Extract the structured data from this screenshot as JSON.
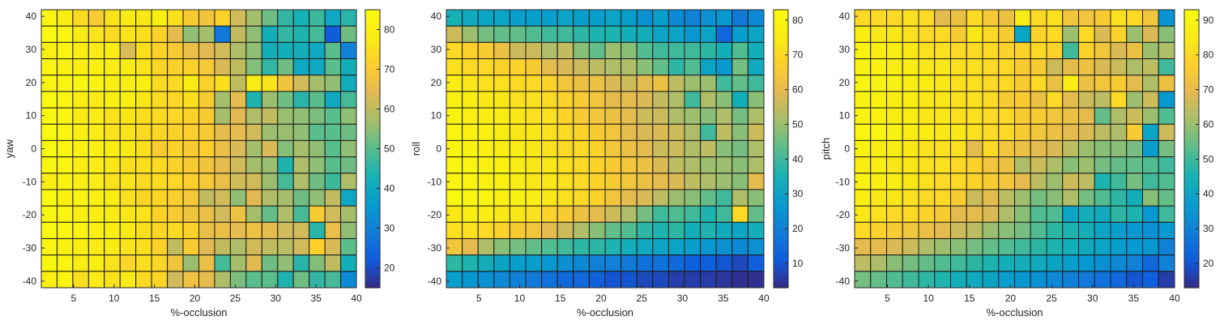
{
  "chart_data": [
    {
      "type": "heatmap",
      "title": "",
      "xlabel": "%-occlusion",
      "ylabel": "yaw",
      "x_ticks": [
        5,
        10,
        15,
        20,
        25,
        30,
        35,
        40
      ],
      "y_ticks": [
        40,
        30,
        20,
        10,
        0,
        -10,
        -20,
        -30,
        -40
      ],
      "colorbar_ticks": [
        80,
        70,
        60,
        50,
        40,
        30,
        20
      ],
      "colorbar_range": [
        15,
        85
      ],
      "colormap": "parula",
      "grid": true,
      "x_range": [
        1,
        40
      ],
      "y_range": [
        -42,
        42
      ],
      "x": [
        2,
        4,
        6,
        8,
        10,
        12,
        14,
        16,
        18,
        20,
        22,
        24,
        26,
        28,
        30,
        32,
        34,
        36,
        38,
        40
      ],
      "y": [
        40,
        35,
        30,
        25,
        20,
        15,
        10,
        5,
        0,
        -5,
        -10,
        -15,
        -20,
        -25,
        -30,
        -35,
        -40
      ],
      "values": [
        [
          82,
          79,
          74,
          70,
          76,
          78,
          77,
          80,
          75,
          70,
          68,
          72,
          62,
          57,
          52,
          46,
          43,
          47,
          40,
          45
        ],
        [
          84,
          82,
          78,
          76,
          74,
          76,
          75,
          72,
          65,
          55,
          57,
          28,
          60,
          55,
          42,
          46,
          44,
          48,
          22,
          52
        ],
        [
          80,
          82,
          80,
          78,
          79,
          63,
          75,
          72,
          70,
          66,
          64,
          62,
          58,
          55,
          42,
          42,
          42,
          40,
          50,
          30
        ],
        [
          82,
          80,
          80,
          81,
          79,
          78,
          76,
          73,
          72,
          72,
          69,
          63,
          60,
          54,
          46,
          52,
          40,
          40,
          50,
          42
        ],
        [
          82,
          82,
          83,
          82,
          80,
          79,
          80,
          74,
          74,
          78,
          72,
          75,
          60,
          78,
          76,
          68,
          62,
          57,
          55,
          41
        ],
        [
          84,
          82,
          80,
          78,
          80,
          80,
          77,
          74,
          73,
          75,
          70,
          57,
          65,
          44,
          56,
          52,
          45,
          50,
          40,
          48
        ],
        [
          83,
          82,
          78,
          79,
          76,
          77,
          75,
          74,
          73,
          72,
          70,
          57,
          64,
          58,
          60,
          56,
          55,
          53,
          50,
          55
        ],
        [
          84,
          82,
          80,
          79,
          76,
          76,
          74,
          73,
          72,
          71,
          70,
          65,
          65,
          62,
          56,
          56,
          55,
          50,
          50,
          52
        ],
        [
          84,
          82,
          81,
          80,
          79,
          78,
          75,
          70,
          72,
          70,
          71,
          66,
          63,
          57,
          63,
          54,
          57,
          55,
          50,
          55
        ],
        [
          83,
          82,
          80,
          79,
          77,
          75,
          75,
          74,
          72,
          70,
          68,
          65,
          62,
          57,
          56,
          44,
          58,
          55,
          50,
          52
        ],
        [
          79,
          81,
          80,
          79,
          76,
          76,
          74,
          74,
          73,
          71,
          69,
          66,
          62,
          62,
          56,
          48,
          58,
          52,
          47,
          58
        ],
        [
          84,
          80,
          82,
          80,
          79,
          75,
          73,
          73,
          71,
          69,
          60,
          62,
          55,
          64,
          58,
          57,
          52,
          55,
          60,
          40
        ],
        [
          83,
          82,
          80,
          80,
          78,
          77,
          76,
          72,
          70,
          68,
          66,
          62,
          67,
          57,
          51,
          58,
          48,
          70,
          62,
          57
        ],
        [
          84,
          82,
          82,
          80,
          79,
          78,
          75,
          73,
          74,
          72,
          66,
          66,
          65,
          67,
          65,
          62,
          62,
          45,
          66,
          55
        ],
        [
          82,
          80,
          80,
          78,
          78,
          76,
          75,
          72,
          60,
          70,
          64,
          60,
          58,
          62,
          60,
          59,
          62,
          72,
          63,
          50
        ],
        [
          84,
          82,
          79,
          80,
          76,
          73,
          75,
          73,
          68,
          56,
          66,
          48,
          57,
          64,
          52,
          55,
          45,
          54,
          60,
          42
        ],
        [
          80,
          82,
          75,
          78,
          76,
          78,
          74,
          73,
          62,
          67,
          65,
          58,
          53,
          50,
          50,
          44,
          52,
          46,
          48,
          32
        ]
      ]
    },
    {
      "type": "heatmap",
      "title": "",
      "xlabel": "%-occlusion",
      "ylabel": "roll",
      "x_ticks": [
        5,
        10,
        15,
        20,
        25,
        30,
        35,
        40
      ],
      "y_ticks": [
        40,
        30,
        20,
        10,
        0,
        -10,
        -20,
        -30,
        -40
      ],
      "colorbar_ticks": [
        80,
        70,
        60,
        50,
        40,
        30,
        20,
        10
      ],
      "colorbar_range": [
        3,
        83
      ],
      "colormap": "parula",
      "grid": true,
      "x_range": [
        1,
        40
      ],
      "y_range": [
        -42,
        42
      ],
      "x": [
        2,
        4,
        6,
        8,
        10,
        12,
        14,
        16,
        18,
        20,
        22,
        24,
        26,
        28,
        30,
        32,
        34,
        36,
        38,
        40
      ],
      "y": [
        40,
        35,
        30,
        25,
        20,
        15,
        10,
        5,
        0,
        -5,
        -10,
        -15,
        -20,
        -25,
        -30,
        -35,
        -40
      ],
      "values": [
        [
          35,
          32,
          30,
          30,
          28,
          28,
          28,
          30,
          28,
          28,
          30,
          28,
          24,
          28,
          22,
          20,
          24,
          26,
          18,
          22
        ],
        [
          56,
          50,
          46,
          44,
          44,
          42,
          40,
          40,
          38,
          36,
          36,
          34,
          34,
          30,
          30,
          26,
          30,
          14,
          28,
          30
        ],
        [
          70,
          68,
          66,
          62,
          56,
          56,
          52,
          55,
          48,
          44,
          50,
          48,
          42,
          40,
          40,
          40,
          38,
          34,
          42,
          34
        ],
        [
          72,
          70,
          70,
          68,
          68,
          66,
          60,
          58,
          56,
          54,
          52,
          52,
          48,
          44,
          38,
          42,
          30,
          26,
          46,
          32
        ],
        [
          76,
          74,
          72,
          72,
          70,
          70,
          68,
          64,
          62,
          62,
          58,
          56,
          60,
          62,
          54,
          50,
          50,
          40,
          44,
          40
        ],
        [
          78,
          76,
          74,
          74,
          72,
          72,
          70,
          68,
          66,
          64,
          60,
          60,
          58,
          55,
          52,
          40,
          52,
          48,
          34,
          48
        ],
        [
          79,
          77,
          76,
          76,
          74,
          72,
          72,
          68,
          66,
          64,
          62,
          60,
          56,
          56,
          52,
          50,
          48,
          52,
          46,
          52
        ],
        [
          80,
          78,
          78,
          76,
          74,
          74,
          72,
          70,
          68,
          66,
          64,
          60,
          58,
          58,
          56,
          52,
          40,
          54,
          48,
          56
        ],
        [
          80,
          79,
          78,
          76,
          76,
          74,
          72,
          70,
          70,
          68,
          64,
          62,
          60,
          56,
          56,
          52,
          54,
          48,
          46,
          52
        ],
        [
          80,
          80,
          78,
          78,
          76,
          74,
          74,
          72,
          70,
          68,
          66,
          64,
          62,
          58,
          54,
          52,
          50,
          50,
          48,
          52
        ],
        [
          80,
          80,
          78,
          78,
          76,
          74,
          74,
          72,
          70,
          68,
          66,
          64,
          62,
          60,
          58,
          54,
          52,
          50,
          48,
          60
        ],
        [
          82,
          80,
          80,
          78,
          78,
          76,
          74,
          72,
          70,
          68,
          64,
          60,
          58,
          54,
          50,
          48,
          44,
          40,
          52,
          48
        ],
        [
          74,
          76,
          76,
          74,
          74,
          72,
          68,
          66,
          62,
          60,
          56,
          52,
          46,
          40,
          42,
          40,
          36,
          40,
          70,
          44
        ],
        [
          72,
          72,
          70,
          68,
          66,
          64,
          60,
          56,
          52,
          48,
          44,
          42,
          38,
          36,
          38,
          34,
          36,
          32,
          30,
          34
        ],
        [
          64,
          60,
          52,
          48,
          46,
          44,
          42,
          40,
          38,
          38,
          36,
          34,
          32,
          30,
          30,
          28,
          26,
          24,
          22,
          24
        ],
        [
          38,
          36,
          34,
          30,
          28,
          28,
          26,
          24,
          22,
          20,
          20,
          18,
          16,
          16,
          14,
          12,
          12,
          10,
          8,
          12
        ],
        [
          28,
          26,
          24,
          22,
          20,
          18,
          16,
          14,
          14,
          12,
          10,
          10,
          8,
          8,
          6,
          6,
          6,
          5,
          4,
          4
        ]
      ]
    },
    {
      "type": "heatmap",
      "title": "",
      "xlabel": "%-occlusion",
      "ylabel": "pitch",
      "x_ticks": [
        5,
        10,
        15,
        20,
        25,
        30,
        35,
        40
      ],
      "y_ticks": [
        40,
        30,
        20,
        10,
        0,
        -10,
        -20,
        -30,
        -40
      ],
      "colorbar_ticks": [
        90,
        80,
        70,
        60,
        50,
        40,
        30,
        20
      ],
      "colorbar_range": [
        13,
        93
      ],
      "colormap": "parula",
      "grid": true,
      "x_range": [
        1,
        40
      ],
      "y_range": [
        -42,
        42
      ],
      "x": [
        2,
        4,
        6,
        8,
        10,
        12,
        14,
        16,
        18,
        20,
        22,
        24,
        26,
        28,
        30,
        32,
        34,
        36,
        38,
        40
      ],
      "y": [
        40,
        35,
        30,
        25,
        20,
        15,
        10,
        5,
        0,
        -5,
        -10,
        -15,
        -20,
        -25,
        -30,
        -35,
        -40
      ],
      "values": [
        [
          80,
          80,
          80,
          82,
          80,
          70,
          72,
          80,
          75,
          72,
          85,
          80,
          82,
          74,
          74,
          76,
          82,
          80,
          74,
          35
        ],
        [
          86,
          84,
          84,
          82,
          80,
          80,
          76,
          84,
          80,
          76,
          40,
          78,
          80,
          60,
          80,
          68,
          78,
          60,
          68,
          58
        ],
        [
          88,
          86,
          86,
          84,
          82,
          82,
          80,
          80,
          80,
          78,
          78,
          80,
          78,
          50,
          78,
          74,
          68,
          72,
          60,
          62
        ],
        [
          88,
          88,
          86,
          86,
          84,
          84,
          82,
          82,
          80,
          80,
          76,
          76,
          66,
          70,
          72,
          68,
          66,
          62,
          64,
          50
        ],
        [
          90,
          88,
          88,
          86,
          86,
          84,
          82,
          82,
          80,
          80,
          76,
          80,
          72,
          86,
          72,
          74,
          76,
          70,
          62,
          72
        ],
        [
          88,
          88,
          86,
          86,
          84,
          84,
          82,
          82,
          80,
          76,
          76,
          72,
          80,
          70,
          66,
          64,
          80,
          60,
          66,
          36
        ],
        [
          88,
          88,
          86,
          86,
          84,
          84,
          82,
          82,
          80,
          80,
          76,
          76,
          74,
          72,
          70,
          54,
          62,
          66,
          60,
          52
        ],
        [
          90,
          90,
          88,
          86,
          86,
          84,
          84,
          82,
          80,
          80,
          76,
          74,
          72,
          70,
          68,
          64,
          62,
          76,
          40,
          66
        ],
        [
          88,
          86,
          86,
          84,
          82,
          82,
          82,
          70,
          80,
          74,
          72,
          70,
          68,
          64,
          60,
          58,
          58,
          56,
          38,
          56
        ],
        [
          86,
          86,
          84,
          84,
          82,
          82,
          80,
          78,
          74,
          72,
          62,
          66,
          62,
          58,
          60,
          56,
          54,
          54,
          52,
          50
        ],
        [
          88,
          86,
          86,
          84,
          82,
          80,
          80,
          78,
          76,
          74,
          70,
          64,
          60,
          66,
          64,
          46,
          50,
          56,
          50,
          52
        ],
        [
          86,
          84,
          84,
          82,
          80,
          80,
          76,
          66,
          70,
          64,
          60,
          56,
          58,
          62,
          56,
          52,
          48,
          44,
          58,
          54
        ],
        [
          84,
          82,
          80,
          80,
          78,
          76,
          70,
          70,
          68,
          62,
          58,
          52,
          52,
          40,
          44,
          42,
          48,
          46,
          36,
          50
        ],
        [
          80,
          78,
          76,
          74,
          72,
          70,
          66,
          64,
          60,
          58,
          56,
          52,
          48,
          46,
          44,
          40,
          38,
          36,
          34,
          36
        ],
        [
          70,
          70,
          68,
          66,
          62,
          60,
          58,
          56,
          54,
          52,
          50,
          48,
          46,
          44,
          42,
          40,
          38,
          36,
          36,
          30
        ],
        [
          64,
          62,
          58,
          56,
          54,
          52,
          50,
          48,
          46,
          44,
          44,
          42,
          40,
          38,
          36,
          34,
          32,
          30,
          24,
          30
        ],
        [
          56,
          54,
          52,
          50,
          48,
          46,
          44,
          42,
          40,
          38,
          36,
          34,
          32,
          30,
          28,
          26,
          24,
          20,
          22,
          16
        ]
      ]
    }
  ]
}
